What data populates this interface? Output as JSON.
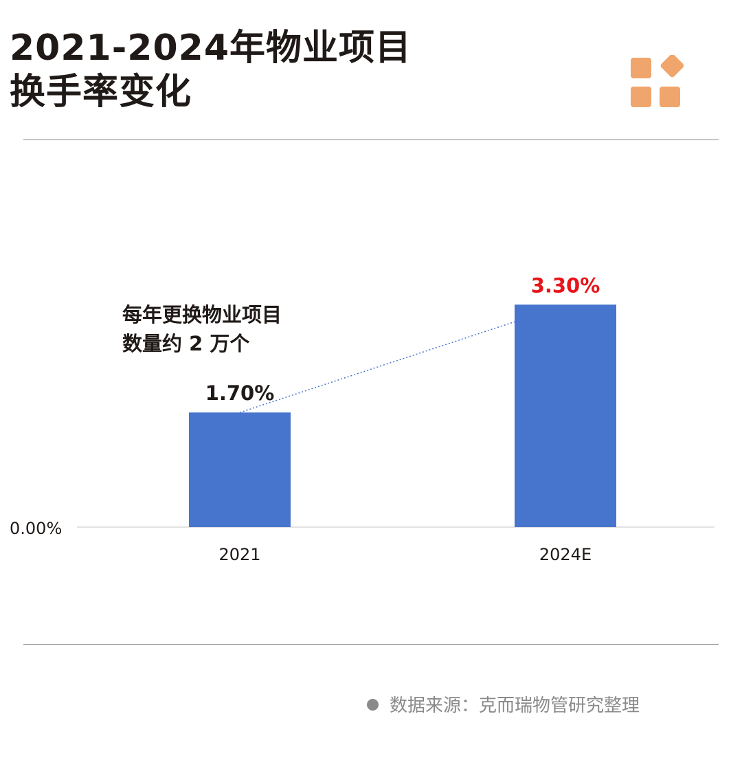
{
  "title_lines": [
    "2021-2024年物业项目",
    "换手率变化"
  ],
  "logo_icon": "orange-grid-logo-icon",
  "colors": {
    "bar": "#4775cd",
    "highlight_label": "#e8141b",
    "logo": "#f0a56c",
    "text": "#1f1a17",
    "muted": "#8a8a8a"
  },
  "chart_data": {
    "type": "bar",
    "categories": [
      "2021",
      "2024E"
    ],
    "values": [
      1.7,
      3.3
    ],
    "data_labels": [
      "1.70%",
      "3.30%"
    ],
    "y_tick_labels": [
      "0.00%"
    ],
    "ylim": [
      0,
      4.2
    ],
    "grid": false,
    "annotation_lines": [
      "每年更换物业项目",
      "数量约 2 万个"
    ]
  },
  "source": {
    "text": "数据来源：克而瑞物管研究整理"
  }
}
